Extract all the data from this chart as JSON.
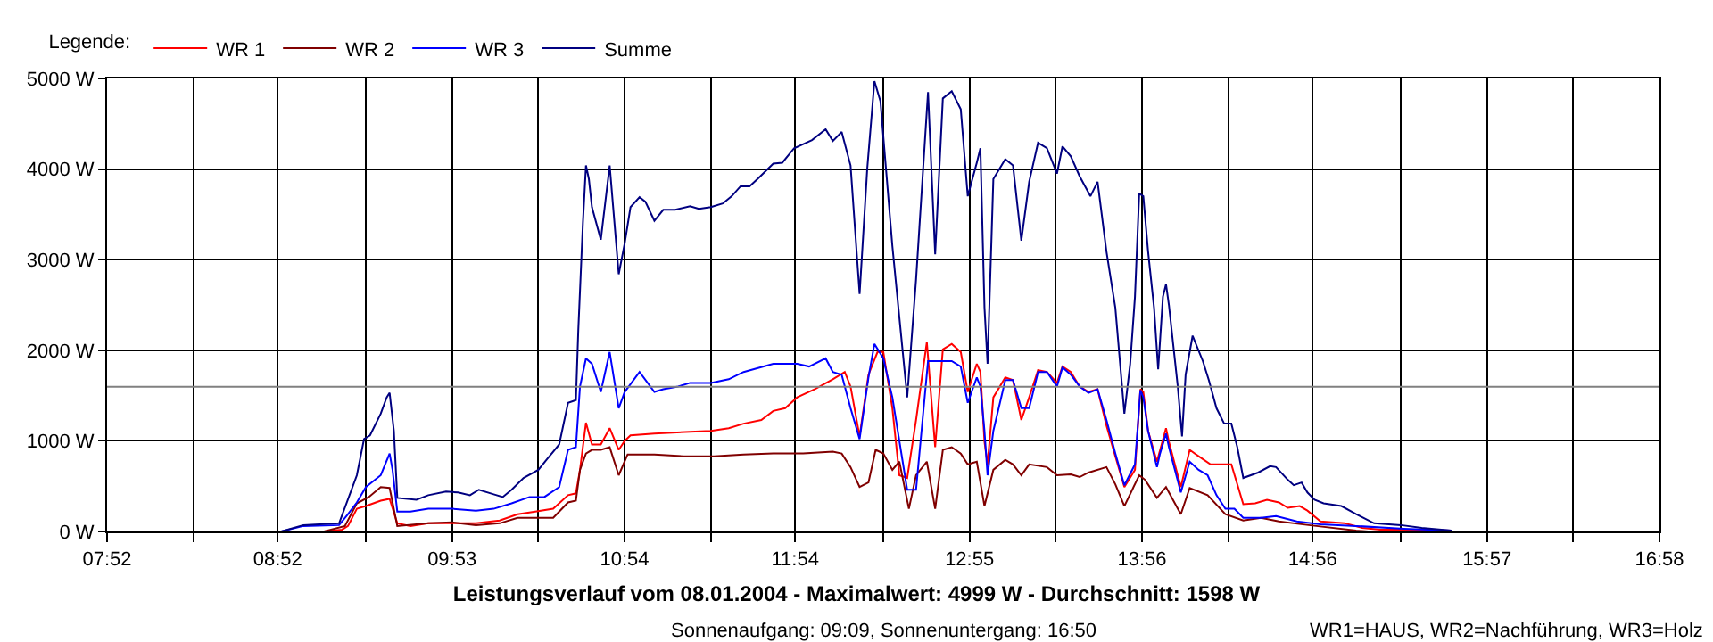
{
  "chart_data": {
    "type": "line",
    "title": "Leistungsverlauf vom 08.01.2004 - Maximalwert: 4999 W - Durchschnitt: 1598 W",
    "subtitle": "Sonnenaufgang: 09:09, Sonnenuntergang: 16:50",
    "annotations": [
      "WR1=HAUS, WR2=Nachführung, WR3=Holz"
    ],
    "legend_title": "Legende:",
    "legend": "top left",
    "grid": true,
    "line_style": "solid",
    "xlim": [
      7.8667,
      16.9667
    ],
    "xticks": [
      {
        "value": 7.8667,
        "label": "07:52"
      },
      {
        "value": 8.3722,
        "label": null
      },
      {
        "value": 8.8667,
        "label": "08:52"
      },
      {
        "value": 9.3833,
        "label": null
      },
      {
        "value": 9.8889,
        "label": "09:53"
      },
      {
        "value": 10.3944,
        "label": null
      },
      {
        "value": 10.9,
        "label": "10:54"
      },
      {
        "value": 11.4056,
        "label": null
      },
      {
        "value": 11.9,
        "label": "11:54"
      },
      {
        "value": 12.4167,
        "label": null
      },
      {
        "value": 12.9222,
        "label": "12:55"
      },
      {
        "value": 13.4278,
        "label": null
      },
      {
        "value": 13.9333,
        "label": "13:56"
      },
      {
        "value": 14.4389,
        "label": null
      },
      {
        "value": 14.9333,
        "label": "14:56"
      },
      {
        "value": 15.45,
        "label": null
      },
      {
        "value": 15.9556,
        "label": "15:57"
      },
      {
        "value": 16.4611,
        "label": null
      },
      {
        "value": 16.9667,
        "label": "16:58"
      }
    ],
    "ylim": [
      0,
      5000
    ],
    "yticks": [
      {
        "value": 0,
        "label": "0 W"
      },
      {
        "value": 1000,
        "label": "1000 W"
      },
      {
        "value": 2000,
        "label": "2000 W"
      },
      {
        "value": 3000,
        "label": "3000 W"
      },
      {
        "value": 4000,
        "label": "4000 W"
      },
      {
        "value": 5000,
        "label": "5000 W"
      }
    ],
    "ref_lines": [
      {
        "axis": "y",
        "value": 1598,
        "color": "#808080"
      }
    ],
    "series": [
      {
        "name": "WR 1",
        "color": "#ff0000",
        "x": [
          9.139,
          9.244,
          9.279,
          9.331,
          9.384,
          9.471,
          9.523,
          9.568,
          9.645,
          9.75,
          10.029,
          10.168,
          10.273,
          10.377,
          10.482,
          10.569,
          10.615,
          10.639,
          10.674,
          10.709,
          10.761,
          10.813,
          10.866,
          10.901,
          10.935,
          11.075,
          11.284,
          11.406,
          11.511,
          11.598,
          11.702,
          11.772,
          11.842,
          11.912,
          12.016,
          12.121,
          12.191,
          12.225,
          12.278,
          12.33,
          12.383,
          12.417,
          12.47,
          12.511,
          12.557,
          12.609,
          12.672,
          12.721,
          12.766,
          12.818,
          12.871,
          12.912,
          12.965,
          12.986,
          13.01,
          13.028,
          13.062,
          13.132,
          13.177,
          13.226,
          13.272,
          13.324,
          13.376,
          13.435,
          13.467,
          13.516,
          13.568,
          13.62,
          13.673,
          13.725,
          13.777,
          13.83,
          13.892,
          13.924,
          13.941,
          13.969,
          14.021,
          14.074,
          14.091,
          14.161,
          14.213,
          14.265,
          14.335,
          14.457,
          14.527,
          14.597,
          14.666,
          14.736,
          14.788,
          14.858,
          14.903,
          14.98,
          15.12,
          15.224,
          15.329,
          15.468,
          15.747
        ],
        "values": [
          0,
          20,
          60,
          250,
          280,
          340,
          360,
          90,
          60,
          90,
          90,
          120,
          190,
          220,
          250,
          400,
          420,
          680,
          1200,
          960,
          960,
          1140,
          900,
          1000,
          1060,
          1080,
          1100,
          1110,
          1140,
          1190,
          1230,
          1330,
          1360,
          1480,
          1570,
          1680,
          1760,
          1600,
          1050,
          1730,
          1980,
          1980,
          1360,
          620,
          590,
          1230,
          2090,
          930,
          2010,
          2070,
          1980,
          1540,
          1850,
          1760,
          990,
          740,
          1480,
          1700,
          1670,
          1230,
          1480,
          1780,
          1760,
          1640,
          1820,
          1760,
          1600,
          1540,
          1570,
          1170,
          830,
          490,
          680,
          1570,
          1540,
          1110,
          770,
          1140,
          990,
          490,
          900,
          830,
          740,
          740,
          300,
          310,
          350,
          320,
          260,
          280,
          230,
          110,
          90,
          40,
          20,
          20,
          10
        ]
      },
      {
        "name": "WR 2",
        "color": "#800000",
        "x": [
          9.139,
          9.261,
          9.331,
          9.401,
          9.471,
          9.523,
          9.568,
          9.75,
          9.889,
          10.029,
          10.168,
          10.273,
          10.377,
          10.482,
          10.569,
          10.615,
          10.639,
          10.674,
          10.709,
          10.761,
          10.813,
          10.866,
          10.918,
          11.075,
          11.249,
          11.424,
          11.598,
          11.772,
          11.947,
          12.121,
          12.173,
          12.225,
          12.278,
          12.33,
          12.372,
          12.417,
          12.47,
          12.511,
          12.567,
          12.609,
          12.672,
          12.721,
          12.766,
          12.818,
          12.871,
          12.912,
          12.965,
          13.01,
          13.062,
          13.132,
          13.177,
          13.226,
          13.272,
          13.376,
          13.435,
          13.516,
          13.568,
          13.62,
          13.725,
          13.777,
          13.83,
          13.917,
          13.951,
          14.021,
          14.074,
          14.161,
          14.213,
          14.318,
          14.422,
          14.527,
          14.631,
          14.736,
          14.91,
          15.189,
          15.259
        ],
        "values": [
          0,
          60,
          310,
          380,
          490,
          480,
          60,
          90,
          100,
          70,
          90,
          150,
          150,
          150,
          320,
          340,
          680,
          860,
          900,
          900,
          930,
          620,
          850,
          850,
          830,
          830,
          850,
          860,
          860,
          880,
          860,
          710,
          490,
          540,
          900,
          860,
          680,
          770,
          250,
          620,
          770,
          250,
          900,
          930,
          860,
          740,
          770,
          280,
          680,
          790,
          740,
          620,
          740,
          710,
          620,
          630,
          600,
          650,
          710,
          520,
          280,
          620,
          570,
          370,
          490,
          190,
          480,
          400,
          190,
          120,
          150,
          110,
          70,
          10,
          0
        ]
      },
      {
        "name": "WR 3",
        "color": "#0000ff",
        "x": [
          8.888,
          9.017,
          9.227,
          9.279,
          9.331,
          9.384,
          9.471,
          9.523,
          9.54,
          9.568,
          9.645,
          9.75,
          9.889,
          10.029,
          10.133,
          10.238,
          10.343,
          10.43,
          10.517,
          10.569,
          10.615,
          10.639,
          10.674,
          10.709,
          10.761,
          10.813,
          10.866,
          10.901,
          10.988,
          11.075,
          11.127,
          11.214,
          11.284,
          11.406,
          11.511,
          11.598,
          11.772,
          11.912,
          11.982,
          12.079,
          12.121,
          12.173,
          12.225,
          12.278,
          12.33,
          12.365,
          12.417,
          12.47,
          12.557,
          12.609,
          12.679,
          12.818,
          12.871,
          12.912,
          12.965,
          12.986,
          13.01,
          13.028,
          13.062,
          13.132,
          13.177,
          13.226,
          13.272,
          13.324,
          13.376,
          13.435,
          13.467,
          13.516,
          13.568,
          13.62,
          13.673,
          13.725,
          13.777,
          13.83,
          13.892,
          13.924,
          13.941,
          13.969,
          14.021,
          14.039,
          14.074,
          14.091,
          14.161,
          14.213,
          14.265,
          14.318,
          14.37,
          14.422,
          14.475,
          14.527,
          14.631,
          14.719,
          14.841,
          14.98,
          15.189,
          15.468,
          15.747
        ],
        "values": [
          0,
          60,
          70,
          190,
          320,
          490,
          620,
          860,
          680,
          220,
          220,
          250,
          250,
          230,
          250,
          310,
          380,
          380,
          490,
          900,
          930,
          1600,
          1910,
          1850,
          1540,
          1980,
          1360,
          1540,
          1760,
          1540,
          1570,
          1600,
          1640,
          1640,
          1680,
          1760,
          1850,
          1850,
          1820,
          1910,
          1760,
          1730,
          1360,
          1020,
          1700,
          2070,
          1910,
          1480,
          460,
          460,
          1880,
          1880,
          1820,
          1420,
          1700,
          1600,
          1110,
          620,
          1110,
          1670,
          1670,
          1360,
          1360,
          1760,
          1760,
          1600,
          1810,
          1730,
          1600,
          1530,
          1570,
          1230,
          860,
          510,
          740,
          1560,
          1480,
          1110,
          710,
          860,
          1080,
          930,
          430,
          770,
          680,
          620,
          400,
          250,
          250,
          150,
          150,
          170,
          110,
          80,
          60,
          30,
          10
        ]
      },
      {
        "name": "Summe",
        "color": "#000080",
        "x": [
          8.888,
          9.017,
          9.227,
          9.331,
          9.373,
          9.408,
          9.471,
          9.506,
          9.523,
          9.548,
          9.568,
          9.68,
          9.75,
          9.854,
          9.924,
          9.994,
          10.046,
          10.133,
          10.186,
          10.238,
          10.308,
          10.395,
          10.447,
          10.517,
          10.569,
          10.615,
          10.629,
          10.656,
          10.674,
          10.691,
          10.709,
          10.761,
          10.813,
          10.866,
          10.901,
          10.935,
          10.988,
          11.022,
          11.075,
          11.127,
          11.197,
          11.284,
          11.336,
          11.406,
          11.476,
          11.528,
          11.58,
          11.633,
          11.685,
          11.772,
          11.825,
          11.894,
          11.999,
          12.079,
          12.121,
          12.173,
          12.225,
          12.278,
          12.323,
          12.365,
          12.4,
          12.47,
          12.557,
          12.609,
          12.679,
          12.721,
          12.766,
          12.818,
          12.871,
          12.912,
          12.965,
          12.986,
          13.01,
          13.028,
          13.062,
          13.132,
          13.177,
          13.226,
          13.272,
          13.324,
          13.376,
          13.435,
          13.467,
          13.516,
          13.568,
          13.631,
          13.673,
          13.725,
          13.777,
          13.83,
          13.864,
          13.892,
          13.917,
          13.941,
          13.969,
          14.004,
          14.028,
          14.056,
          14.074,
          14.091,
          14.143,
          14.168,
          14.189,
          14.23,
          14.29,
          14.325,
          14.37,
          14.415,
          14.457,
          14.492,
          14.527,
          14.614,
          14.684,
          14.719,
          14.788,
          14.823,
          14.869,
          14.903,
          14.945,
          14.998,
          15.102,
          15.189,
          15.294,
          15.451,
          15.573,
          15.747
        ],
        "values": [
          0,
          70,
          90,
          620,
          1020,
          1060,
          1300,
          1480,
          1530,
          1110,
          370,
          350,
          400,
          440,
          430,
          400,
          460,
          410,
          380,
          460,
          590,
          680,
          800,
          960,
          1420,
          1450,
          2220,
          3400,
          4040,
          3890,
          3580,
          3220,
          4040,
          2840,
          3180,
          3580,
          3690,
          3640,
          3430,
          3550,
          3550,
          3590,
          3560,
          3580,
          3620,
          3700,
          3810,
          3810,
          3900,
          4060,
          4070,
          4230,
          4320,
          4440,
          4310,
          4410,
          4040,
          2620,
          4010,
          4970,
          4750,
          3150,
          1480,
          2780,
          4850,
          3060,
          4780,
          4860,
          4660,
          3700,
          4070,
          4230,
          2470,
          1850,
          3890,
          4110,
          4040,
          3210,
          3860,
          4290,
          4230,
          3950,
          4250,
          4140,
          3920,
          3700,
          3860,
          3090,
          2470,
          1300,
          1850,
          2590,
          3730,
          3700,
          3090,
          2470,
          1790,
          2590,
          2730,
          2500,
          1600,
          1050,
          1730,
          2160,
          1880,
          1670,
          1360,
          1190,
          1190,
          930,
          590,
          650,
          720,
          710,
          570,
          510,
          540,
          430,
          350,
          310,
          280,
          190,
          90,
          70,
          40,
          10
        ]
      }
    ]
  }
}
